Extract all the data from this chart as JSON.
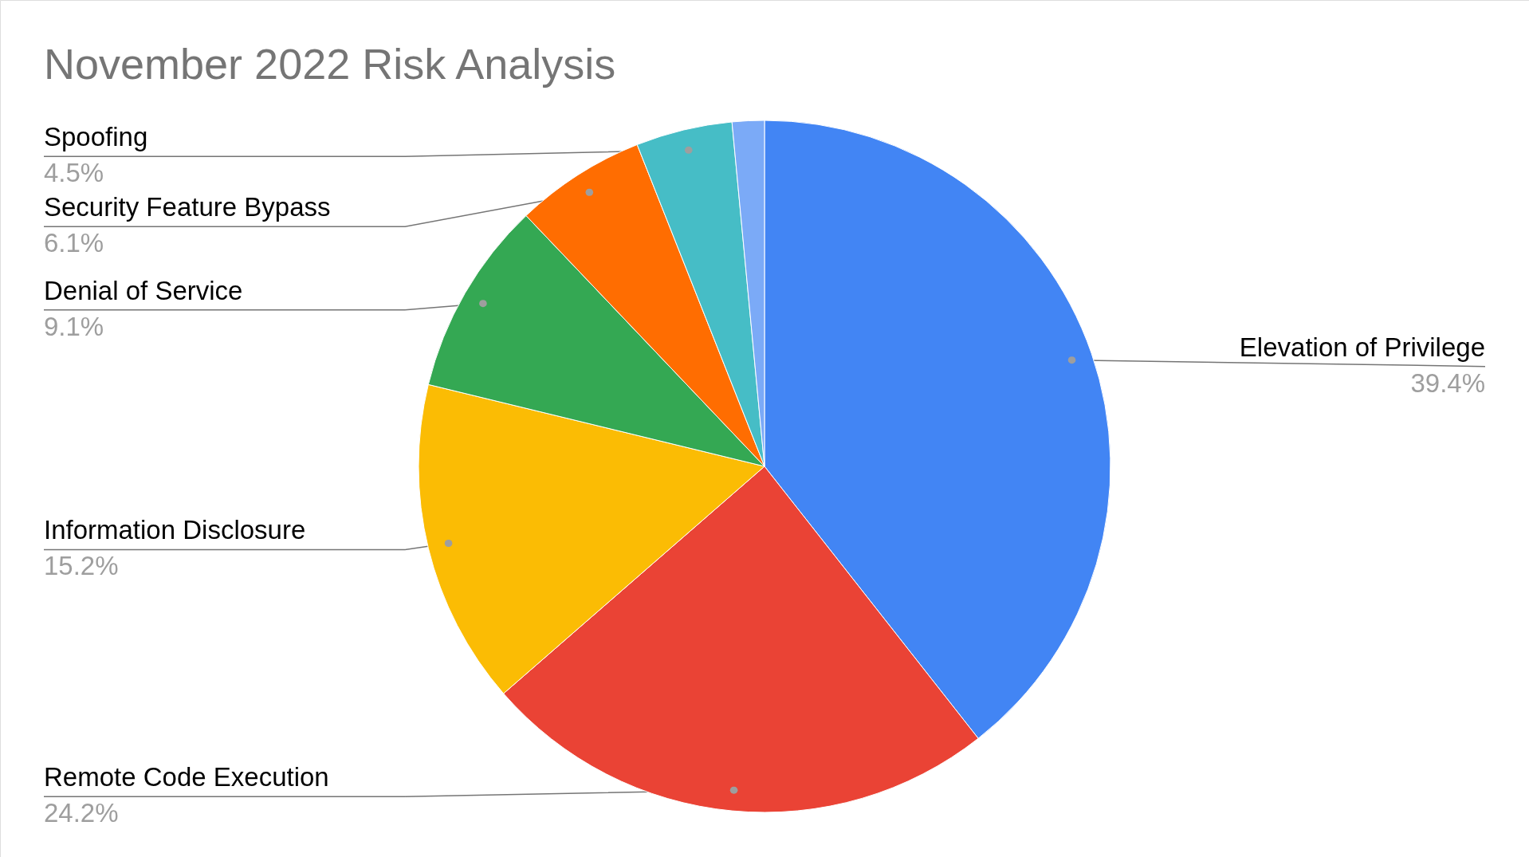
{
  "chart_data": {
    "type": "pie",
    "title": "November 2022 Risk Analysis",
    "categories": [
      "Elevation of Privilege",
      "Remote Code Execution",
      "Information Disclosure",
      "Denial of Service",
      "Security Feature Bypass",
      "Spoofing",
      null
    ],
    "values": [
      39.4,
      24.2,
      15.2,
      9.1,
      6.1,
      4.5,
      1.5
    ],
    "value_labels": [
      "39.4%",
      "24.2%",
      "15.2%",
      "9.1%",
      "6.1%",
      "4.5%",
      null
    ],
    "colors": [
      "#4285f4",
      "#ea4335",
      "#fbbc04",
      "#34a853",
      "#ff6d01",
      "#46bdc6",
      "#7baaf7"
    ]
  }
}
